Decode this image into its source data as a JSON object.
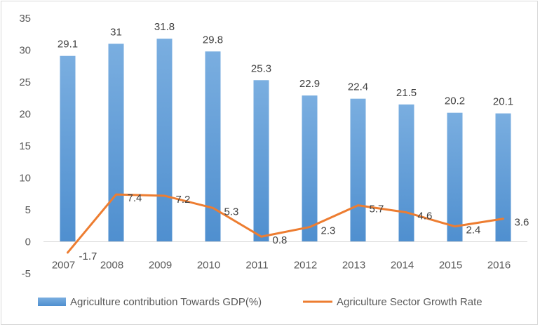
{
  "chart_data": {
    "type": "bar",
    "categories": [
      "2007",
      "2008",
      "2009",
      "2010",
      "2011",
      "2012",
      "2013",
      "2014",
      "2015",
      "2016"
    ],
    "series": [
      {
        "name": "Agriculture contribution  Towards GDP(%)",
        "kind": "bar",
        "color": "#5b9bd5",
        "values": [
          29.1,
          31,
          31.8,
          29.8,
          25.3,
          22.9,
          22.4,
          21.5,
          20.2,
          20.1
        ],
        "labels": [
          "29.1",
          "31",
          "31.8",
          "29.8",
          "25.3",
          "22.9",
          "22.4",
          "21.5",
          "20.2",
          "20.1"
        ]
      },
      {
        "name": "Agriculture Sector Growth Rate",
        "kind": "line",
        "color": "#ed7d31",
        "values": [
          -1.7,
          7.4,
          7.2,
          5.3,
          0.8,
          2.3,
          5.7,
          4.6,
          2.4,
          3.6
        ],
        "labels": [
          "-1.7",
          "7.4",
          "7.2",
          "5.3",
          "0.8",
          "2.3",
          "5.7",
          "4.6",
          "2.4",
          "3.6"
        ]
      }
    ],
    "ylim": [
      -5,
      35
    ],
    "yticks": [
      -5,
      0,
      5,
      10,
      15,
      20,
      25,
      30,
      35
    ],
    "grid": false,
    "legend": "bottom",
    "title": "",
    "xlabel": "",
    "ylabel": ""
  }
}
